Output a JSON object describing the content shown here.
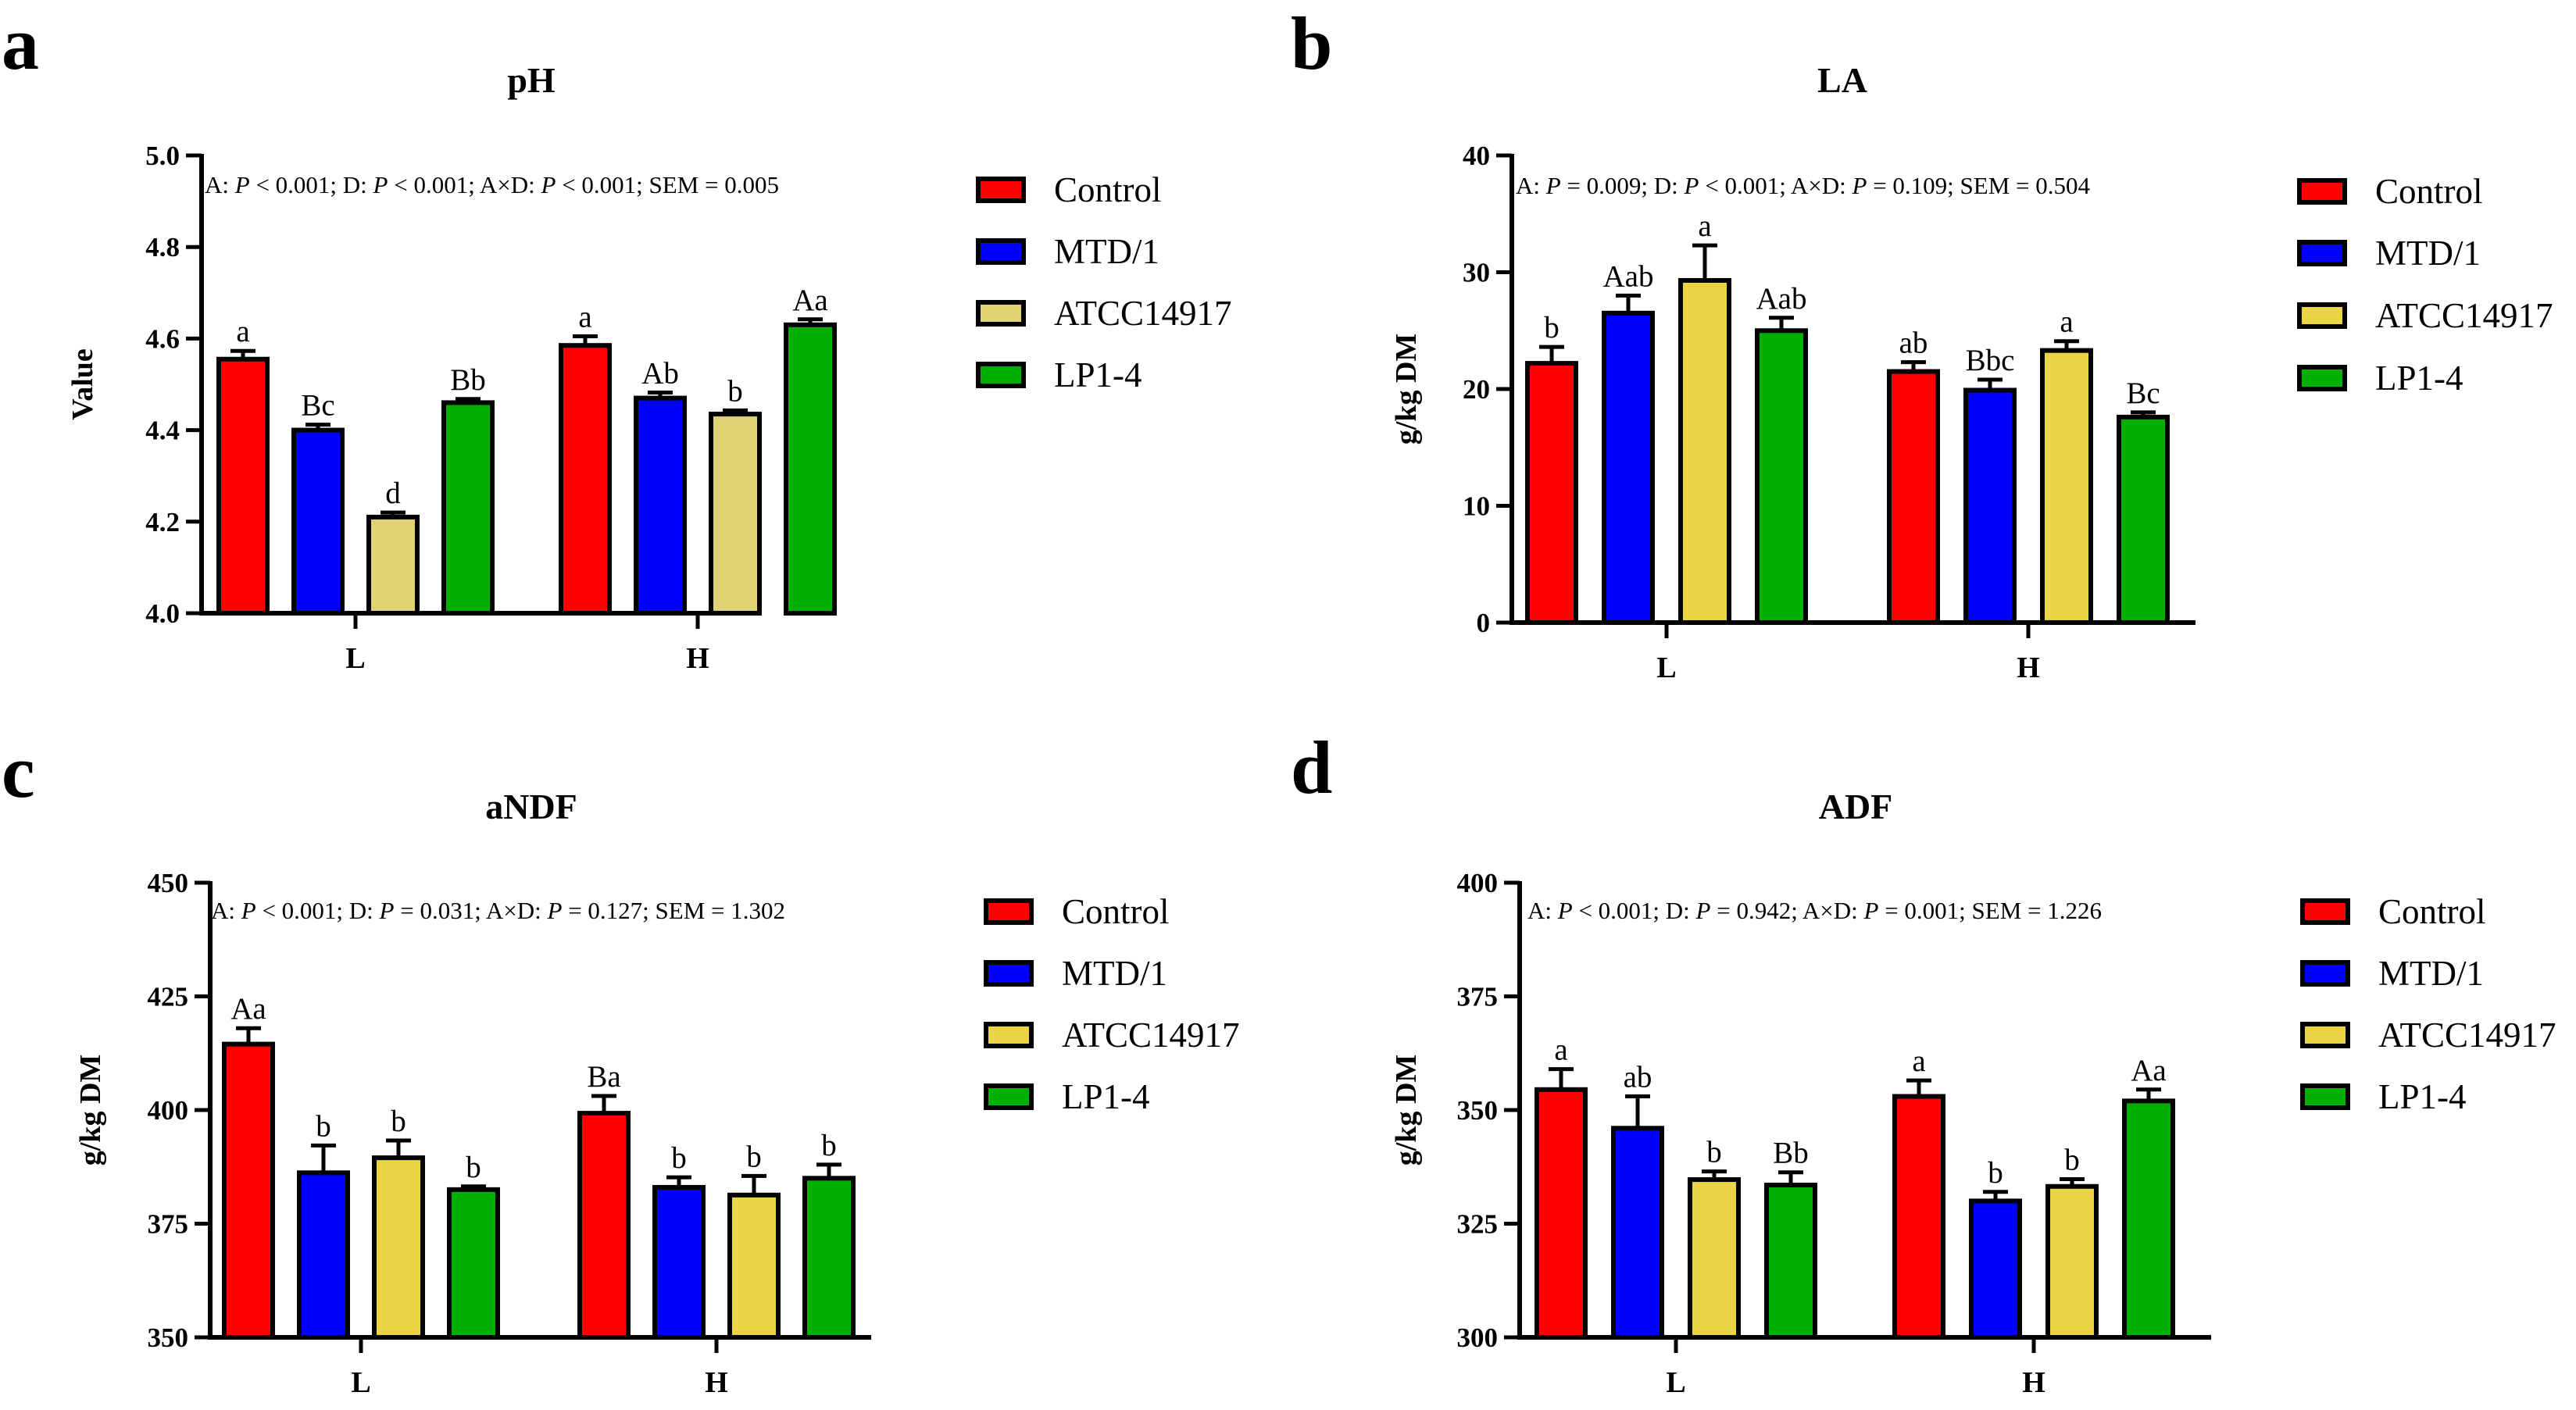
{
  "legend_colors": {
    "Control": "#ff0000",
    "MTD/1": "#0000ff",
    "ATCC14917": "#e8d264",
    "LP1-4": "#00b000"
  },
  "chart_data": [
    {
      "panel": "a",
      "type": "bar",
      "title": "pH",
      "ylabel": "Value",
      "xlabel": "",
      "ylim": [
        4.0,
        5.0
      ],
      "yticks": [
        "4.0",
        "4.2",
        "4.4",
        "4.6",
        "4.8",
        "5.0"
      ],
      "categories": [
        "L",
        "H"
      ],
      "stats": [
        "A: ",
        "P",
        " < 0.001; D: ",
        "P",
        " < 0.001; A×D: ",
        "P",
        " < 0.001; SEM = 0.005"
      ],
      "series": [
        {
          "name": "Control",
          "color": "#ff0000",
          "values": [
            4.555,
            4.585
          ],
          "errors": [
            0.018,
            0.02
          ],
          "labels": [
            "a",
            "a"
          ]
        },
        {
          "name": "MTD/1",
          "color": "#0000ff",
          "values": [
            4.4,
            4.47
          ],
          "errors": [
            0.012,
            0.012
          ],
          "labels": [
            "Bc",
            "Ab"
          ]
        },
        {
          "name": "ATCC14917",
          "color": "#e0d472",
          "values": [
            4.21,
            4.435
          ],
          "errors": [
            0.01,
            0.008
          ],
          "labels": [
            "d",
            "b"
          ]
        },
        {
          "name": "LP1-4",
          "color": "#00b000",
          "values": [
            4.46,
            4.63
          ],
          "errors": [
            0.008,
            0.012
          ],
          "labels": [
            "Bb",
            "Aa"
          ]
        }
      ]
    },
    {
      "panel": "b",
      "type": "bar",
      "title": "LA",
      "ylabel": "g/kg DM",
      "xlabel": "",
      "ylim": [
        0,
        40
      ],
      "yticks": [
        "0",
        "10",
        "20",
        "30",
        "40"
      ],
      "categories": [
        "L",
        "H"
      ],
      "stats": [
        "A: ",
        "P",
        " = 0.009; D: ",
        "P",
        " < 0.001; A×D: ",
        "P",
        " = 0.109; SEM = 0.504"
      ],
      "series": [
        {
          "name": "Control",
          "color": "#ff0000",
          "values": [
            22.2,
            21.5
          ],
          "errors": [
            1.4,
            0.8
          ],
          "labels": [
            "b",
            "ab"
          ]
        },
        {
          "name": "MTD/1",
          "color": "#0000ff",
          "values": [
            26.5,
            19.9
          ],
          "errors": [
            1.5,
            0.9
          ],
          "labels": [
            "Aab",
            "Bbc"
          ]
        },
        {
          "name": "ATCC14917",
          "color": "#e8d444",
          "values": [
            29.3,
            23.3
          ],
          "errors": [
            3.0,
            0.8
          ],
          "labels": [
            "a",
            "a"
          ]
        },
        {
          "name": "LP1-4",
          "color": "#00b000",
          "values": [
            25.0,
            17.6
          ],
          "errors": [
            1.1,
            0.4
          ],
          "labels": [
            "Aab",
            "Bc"
          ]
        }
      ]
    },
    {
      "panel": "c",
      "type": "bar",
      "title": "aNDF",
      "ylabel": "g/kg DM",
      "xlabel": "",
      "ylim": [
        350,
        450
      ],
      "yticks": [
        "350",
        "375",
        "400",
        "425",
        "450"
      ],
      "categories": [
        "L",
        "H"
      ],
      "stats": [
        "A: ",
        "P",
        " < 0.001; D: ",
        "P",
        " = 0.031; A×D: ",
        "P",
        " = 0.127; SEM = 1.302"
      ],
      "series": [
        {
          "name": "Control",
          "color": "#ff0000",
          "values": [
            414.5,
            399.3
          ],
          "errors": [
            3.5,
            3.8
          ],
          "labels": [
            "Aa",
            "Ba"
          ]
        },
        {
          "name": "MTD/1",
          "color": "#0000ff",
          "values": [
            386.2,
            383.0
          ],
          "errors": [
            6.0,
            2.2
          ],
          "labels": [
            "b",
            "b"
          ]
        },
        {
          "name": "ATCC14917",
          "color": "#e8d444",
          "values": [
            389.5,
            381.3
          ],
          "errors": [
            3.8,
            4.2
          ],
          "labels": [
            "b",
            "b"
          ]
        },
        {
          "name": "LP1-4",
          "color": "#00b000",
          "values": [
            382.5,
            385.0
          ],
          "errors": [
            0.7,
            3.0
          ],
          "labels": [
            "b",
            "b"
          ]
        }
      ]
    },
    {
      "panel": "d",
      "type": "bar",
      "title": "ADF",
      "ylabel": "g/kg DM",
      "xlabel": "",
      "ylim": [
        300,
        400
      ],
      "yticks": [
        "300",
        "325",
        "350",
        "375",
        "400"
      ],
      "categories": [
        "L",
        "H"
      ],
      "stats": [
        "A: ",
        "P",
        " < 0.001; D: ",
        "P",
        " = 0.942; A×D: ",
        "P",
        " = 0.001; SEM = 1.226"
      ],
      "series": [
        {
          "name": "Control",
          "color": "#ff0000",
          "values": [
            354.5,
            353.0
          ],
          "errors": [
            4.5,
            3.5
          ],
          "labels": [
            "a",
            "a"
          ]
        },
        {
          "name": "MTD/1",
          "color": "#0000ff",
          "values": [
            346.0,
            330.0
          ],
          "errors": [
            7.0,
            2.0
          ],
          "labels": [
            "ab",
            "b"
          ]
        },
        {
          "name": "ATCC14917",
          "color": "#e8d444",
          "values": [
            334.7,
            333.2
          ],
          "errors": [
            1.8,
            1.6
          ],
          "labels": [
            "b",
            "b"
          ]
        },
        {
          "name": "LP1-4",
          "color": "#00b000",
          "values": [
            333.5,
            352.0
          ],
          "errors": [
            2.8,
            2.5
          ],
          "labels": [
            "Bb",
            "Aa"
          ]
        }
      ]
    }
  ]
}
